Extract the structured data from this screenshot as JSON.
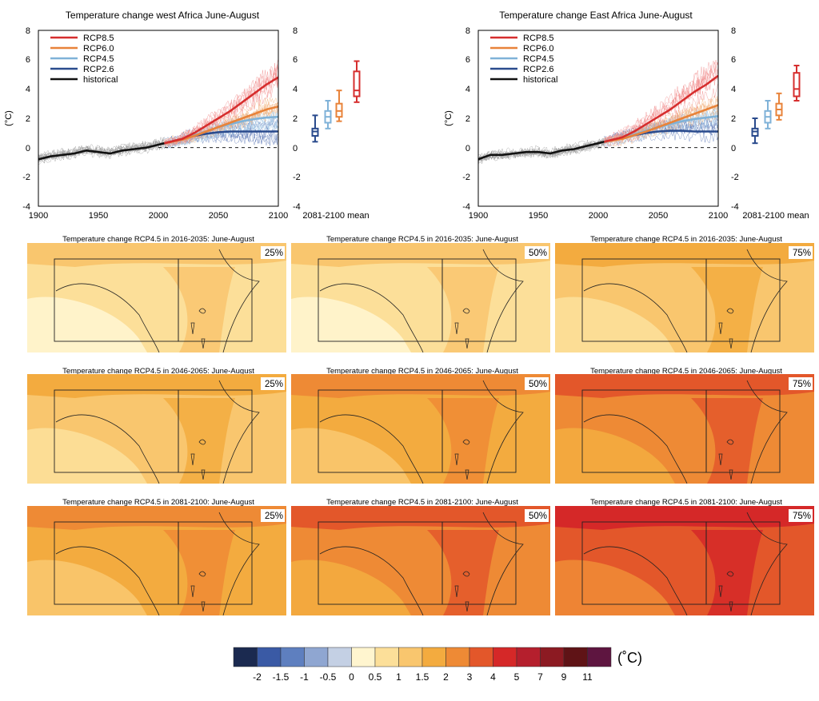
{
  "colors": {
    "rcp85": "#d62e2e",
    "rcp60": "#e8833a",
    "rcp45": "#7fb2d8",
    "rcp26": "#2a4b8d",
    "historical": "#111111",
    "ensemble_hist": "#9a9a9a",
    "scale": [
      "#1b2a50",
      "#3a5aa5",
      "#5e7fbf",
      "#8fa6d1",
      "#c4d0e4",
      "#fff5cf",
      "#fcdf99",
      "#f9c66e",
      "#f3ab3f",
      "#ee8a35",
      "#e3572a",
      "#d52828",
      "#b51f2d",
      "#8c1a22",
      "#5f1316",
      "#5e1540"
    ]
  },
  "chart_data": [
    {
      "type": "line",
      "title": "Temperature change west Africa June-August",
      "ylabel": "(°C)",
      "xlim": [
        1900,
        2100
      ],
      "ylim": [
        -4,
        8
      ],
      "xticks": [
        "1900",
        "1950",
        "2000",
        "2050",
        "2100"
      ],
      "yticks": [
        "-4",
        "-2",
        "0",
        "2",
        "4",
        "6",
        "8"
      ],
      "right_yticks": [
        "-4",
        "-2",
        "0",
        "2",
        "4",
        "6",
        "8"
      ],
      "box_label": "2081-2100 mean",
      "legend": [
        "RCP8.5",
        "RCP6.0",
        "RCP4.5",
        "RCP2.6",
        "historical"
      ],
      "legend_position": "top-left",
      "series": [
        {
          "name": "historical",
          "x": [
            1900,
            1910,
            1920,
            1930,
            1940,
            1950,
            1960,
            1970,
            1980,
            1990,
            2000,
            2005
          ],
          "values": [
            -0.8,
            -0.6,
            -0.5,
            -0.4,
            -0.2,
            -0.3,
            -0.4,
            -0.2,
            -0.1,
            0.0,
            0.2,
            0.3
          ]
        },
        {
          "name": "RCP8.5",
          "x": [
            2005,
            2020,
            2030,
            2040,
            2050,
            2060,
            2070,
            2080,
            2090,
            2100
          ],
          "values": [
            0.3,
            0.6,
            1.0,
            1.5,
            2.0,
            2.5,
            3.1,
            3.7,
            4.3,
            4.8
          ]
        },
        {
          "name": "RCP6.0",
          "x": [
            2005,
            2020,
            2030,
            2040,
            2050,
            2060,
            2070,
            2080,
            2090,
            2100
          ],
          "values": [
            0.3,
            0.55,
            0.8,
            1.1,
            1.4,
            1.7,
            2.0,
            2.3,
            2.6,
            2.8
          ]
        },
        {
          "name": "RCP4.5",
          "x": [
            2005,
            2020,
            2030,
            2040,
            2050,
            2060,
            2070,
            2080,
            2090,
            2100
          ],
          "values": [
            0.3,
            0.6,
            0.85,
            1.1,
            1.4,
            1.6,
            1.8,
            1.95,
            2.05,
            2.1
          ]
        },
        {
          "name": "RCP2.6",
          "x": [
            2005,
            2020,
            2030,
            2040,
            2050,
            2060,
            2070,
            2080,
            2090,
            2100
          ],
          "values": [
            0.3,
            0.6,
            0.8,
            0.95,
            1.05,
            1.1,
            1.1,
            1.1,
            1.1,
            1.1
          ]
        }
      ],
      "boxes": [
        {
          "name": "RCP2.6",
          "whisker_low": 0.4,
          "q1": 0.8,
          "median": 1.1,
          "q3": 1.3,
          "whisker_high": 2.2
        },
        {
          "name": "RCP4.5",
          "whisker_low": 1.3,
          "q1": 1.7,
          "median": 2.1,
          "q3": 2.5,
          "whisker_high": 3.2
        },
        {
          "name": "RCP6.0",
          "whisker_low": 1.8,
          "q1": 2.1,
          "median": 2.5,
          "q3": 3.0,
          "whisker_high": 3.9
        },
        {
          "name": "RCP8.5",
          "whisker_low": 3.1,
          "q1": 3.5,
          "median": 3.9,
          "q3": 5.2,
          "whisker_high": 5.9
        }
      ]
    },
    {
      "type": "line",
      "title": "Temperature change East Africa June-August",
      "ylabel": "(°C)",
      "xlim": [
        1900,
        2100
      ],
      "ylim": [
        -4,
        8
      ],
      "xticks": [
        "1900",
        "1950",
        "2000",
        "2050",
        "2100"
      ],
      "yticks": [
        "-4",
        "-2",
        "0",
        "2",
        "4",
        "6",
        "8"
      ],
      "right_yticks": [
        "-4",
        "-2",
        "0",
        "2",
        "4",
        "6",
        "8"
      ],
      "box_label": "2081-2100 mean",
      "legend": [
        "RCP8.5",
        "RCP6.0",
        "RCP4.5",
        "RCP2.6",
        "historical"
      ],
      "legend_position": "top-left",
      "series": [
        {
          "name": "historical",
          "x": [
            1900,
            1910,
            1920,
            1930,
            1940,
            1950,
            1960,
            1970,
            1980,
            1990,
            2000,
            2005
          ],
          "values": [
            -0.8,
            -0.5,
            -0.5,
            -0.4,
            -0.3,
            -0.3,
            -0.4,
            -0.2,
            -0.1,
            0.1,
            0.3,
            0.4
          ]
        },
        {
          "name": "RCP8.5",
          "x": [
            2005,
            2020,
            2030,
            2040,
            2050,
            2060,
            2070,
            2080,
            2090,
            2100
          ],
          "values": [
            0.4,
            0.7,
            1.1,
            1.6,
            2.1,
            2.6,
            3.2,
            3.8,
            4.3,
            4.9
          ]
        },
        {
          "name": "RCP6.0",
          "x": [
            2005,
            2020,
            2030,
            2040,
            2050,
            2060,
            2070,
            2080,
            2090,
            2100
          ],
          "values": [
            0.4,
            0.6,
            0.85,
            1.1,
            1.4,
            1.7,
            2.0,
            2.3,
            2.6,
            2.9
          ]
        },
        {
          "name": "RCP4.5",
          "x": [
            2005,
            2020,
            2030,
            2040,
            2050,
            2060,
            2070,
            2080,
            2090,
            2100
          ],
          "values": [
            0.4,
            0.65,
            0.9,
            1.15,
            1.4,
            1.6,
            1.8,
            1.95,
            2.05,
            2.15
          ]
        },
        {
          "name": "RCP2.6",
          "x": [
            2005,
            2020,
            2030,
            2040,
            2050,
            2060,
            2070,
            2080,
            2090,
            2100
          ],
          "values": [
            0.4,
            0.65,
            0.85,
            1.0,
            1.1,
            1.15,
            1.15,
            1.1,
            1.1,
            1.1
          ]
        }
      ],
      "boxes": [
        {
          "name": "RCP2.6",
          "whisker_low": 0.3,
          "q1": 0.8,
          "median": 1.1,
          "q3": 1.3,
          "whisker_high": 2.0
        },
        {
          "name": "RCP4.5",
          "whisker_low": 1.3,
          "q1": 1.7,
          "median": 2.1,
          "q3": 2.5,
          "whisker_high": 3.2
        },
        {
          "name": "RCP6.0",
          "whisker_low": 1.9,
          "q1": 2.2,
          "median": 2.6,
          "q3": 3.0,
          "whisker_high": 3.7
        },
        {
          "name": "RCP8.5",
          "whisker_low": 3.2,
          "q1": 3.5,
          "median": 4.0,
          "q3": 5.1,
          "whisker_high": 5.6
        }
      ]
    },
    {
      "type": "heatmap",
      "scenario": "RCP4.5",
      "season": "June-August",
      "periods": [
        "2016-2035",
        "2046-2065",
        "2081-2100"
      ],
      "percentiles": [
        "25%",
        "50%",
        "75%"
      ],
      "panel_titles": [
        [
          "Temperature change RCP4.5 in 2016-2035: June-August",
          "Temperature change RCP4.5 in 2016-2035: June-August",
          "Temperature change RCP4.5 in 2016-2035: June-August"
        ],
        [
          "Temperature change RCP4.5 in 2046-2065: June-August",
          "Temperature change RCP4.5 in 2046-2065: June-August",
          "Temperature change RCP4.5 in 2046-2065: June-August"
        ],
        [
          "Temperature change RCP4.5 in 2081-2100: June-August",
          "Temperature change RCP4.5 in 2081-2100: June-August",
          "Temperature change RCP4.5 in 2081-2100: June-August"
        ]
      ],
      "dominant_change_degC": [
        [
          [
            0.5,
            1
          ],
          [
            0.5,
            1
          ],
          [
            1,
            1.5
          ]
        ],
        [
          [
            1,
            1.5
          ],
          [
            1.5,
            2
          ],
          [
            2,
            3
          ]
        ],
        [
          [
            1.5,
            2
          ],
          [
            2,
            3
          ],
          [
            3,
            4
          ]
        ]
      ]
    }
  ],
  "colorbar": {
    "unit": "(˚C)",
    "tick_labels": [
      "-2",
      "-1.5",
      "-1",
      "-0.5",
      "0",
      "0.5",
      "1",
      "1.5",
      "2",
      "3",
      "4",
      "5",
      "7",
      "9",
      "11"
    ]
  }
}
